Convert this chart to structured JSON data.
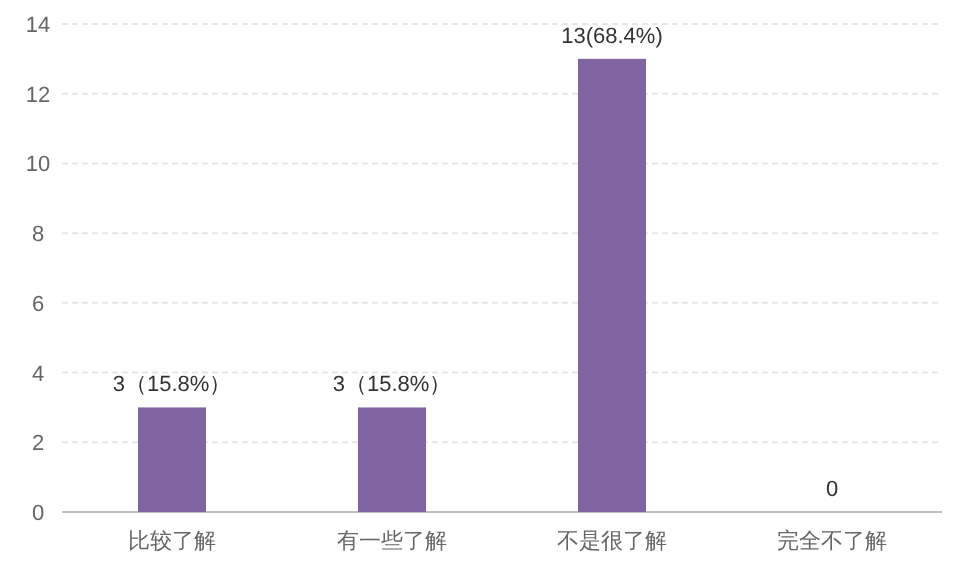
{
  "chart_data": {
    "type": "bar",
    "categories": [
      "比较了解",
      "有一些了解",
      "不是很了解",
      "完全不了解"
    ],
    "values": [
      3,
      3,
      13,
      0
    ],
    "value_labels": [
      "3（15.8%）",
      "3（15.8%）",
      "13(68.4%)",
      "0"
    ],
    "color": "#8064a2",
    "ylim": [
      0,
      14
    ],
    "yticks": [
      0,
      2,
      4,
      6,
      8,
      10,
      12,
      14
    ],
    "grid": "y"
  }
}
